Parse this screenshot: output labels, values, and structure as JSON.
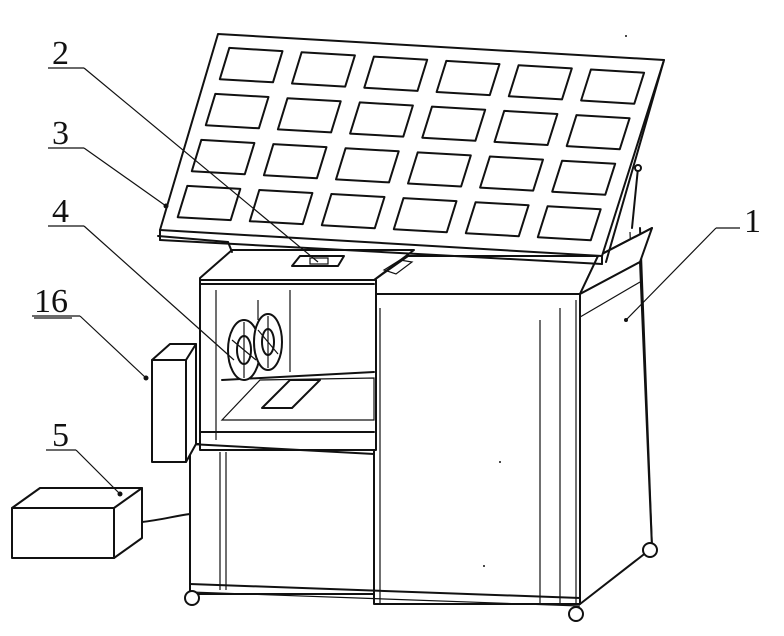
{
  "callouts": [
    {
      "id": "1",
      "label": "1",
      "underlined": false
    },
    {
      "id": "2",
      "label": "2",
      "underlined": false
    },
    {
      "id": "3",
      "label": "3",
      "underlined": false
    },
    {
      "id": "4",
      "label": "4",
      "underlined": false
    },
    {
      "id": "16",
      "label": "16",
      "underlined": true
    },
    {
      "id": "5",
      "label": "5",
      "underlined": false
    }
  ],
  "solar_panel": {
    "rows": 4,
    "columns": 6
  },
  "colors": {
    "line": "#111111",
    "background": "#ffffff"
  }
}
